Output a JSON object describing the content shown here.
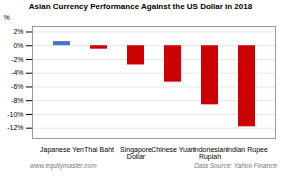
{
  "chart_data": {
    "type": "bar",
    "title": "Asian Currency Performance Against the US Dollar in 2018",
    "categories": [
      "Japanese Yen",
      "Thai Baht",
      "Singapore\nDollar",
      "Chinese Yuan",
      "Indonesian\nRupiah",
      "Indian Rupee"
    ],
    "values": [
      0.6,
      -0.5,
      -2.8,
      -5.3,
      -8.6,
      -11.8
    ],
    "colors": [
      "#4472c4",
      "#cc0000",
      "#cc0000",
      "#cc0000",
      "#cc0000",
      "#cc0000"
    ],
    "ylabel": "%",
    "ylim": [
      -13.5,
      2.8
    ],
    "yticks": [
      {
        "value": 2,
        "label": "2%"
      },
      {
        "value": 0,
        "label": "0%"
      },
      {
        "value": -2,
        "label": "-2%"
      },
      {
        "value": -4,
        "label": "-4%"
      },
      {
        "value": -6,
        "label": "-6%"
      },
      {
        "value": -8,
        "label": "-8%"
      },
      {
        "value": -10,
        "label": "-10%"
      },
      {
        "value": -12,
        "label": "-12%"
      }
    ],
    "grid": true,
    "annotations": [
      "www.equitymaster.com",
      "Data Source: Yahoo Finance"
    ]
  }
}
